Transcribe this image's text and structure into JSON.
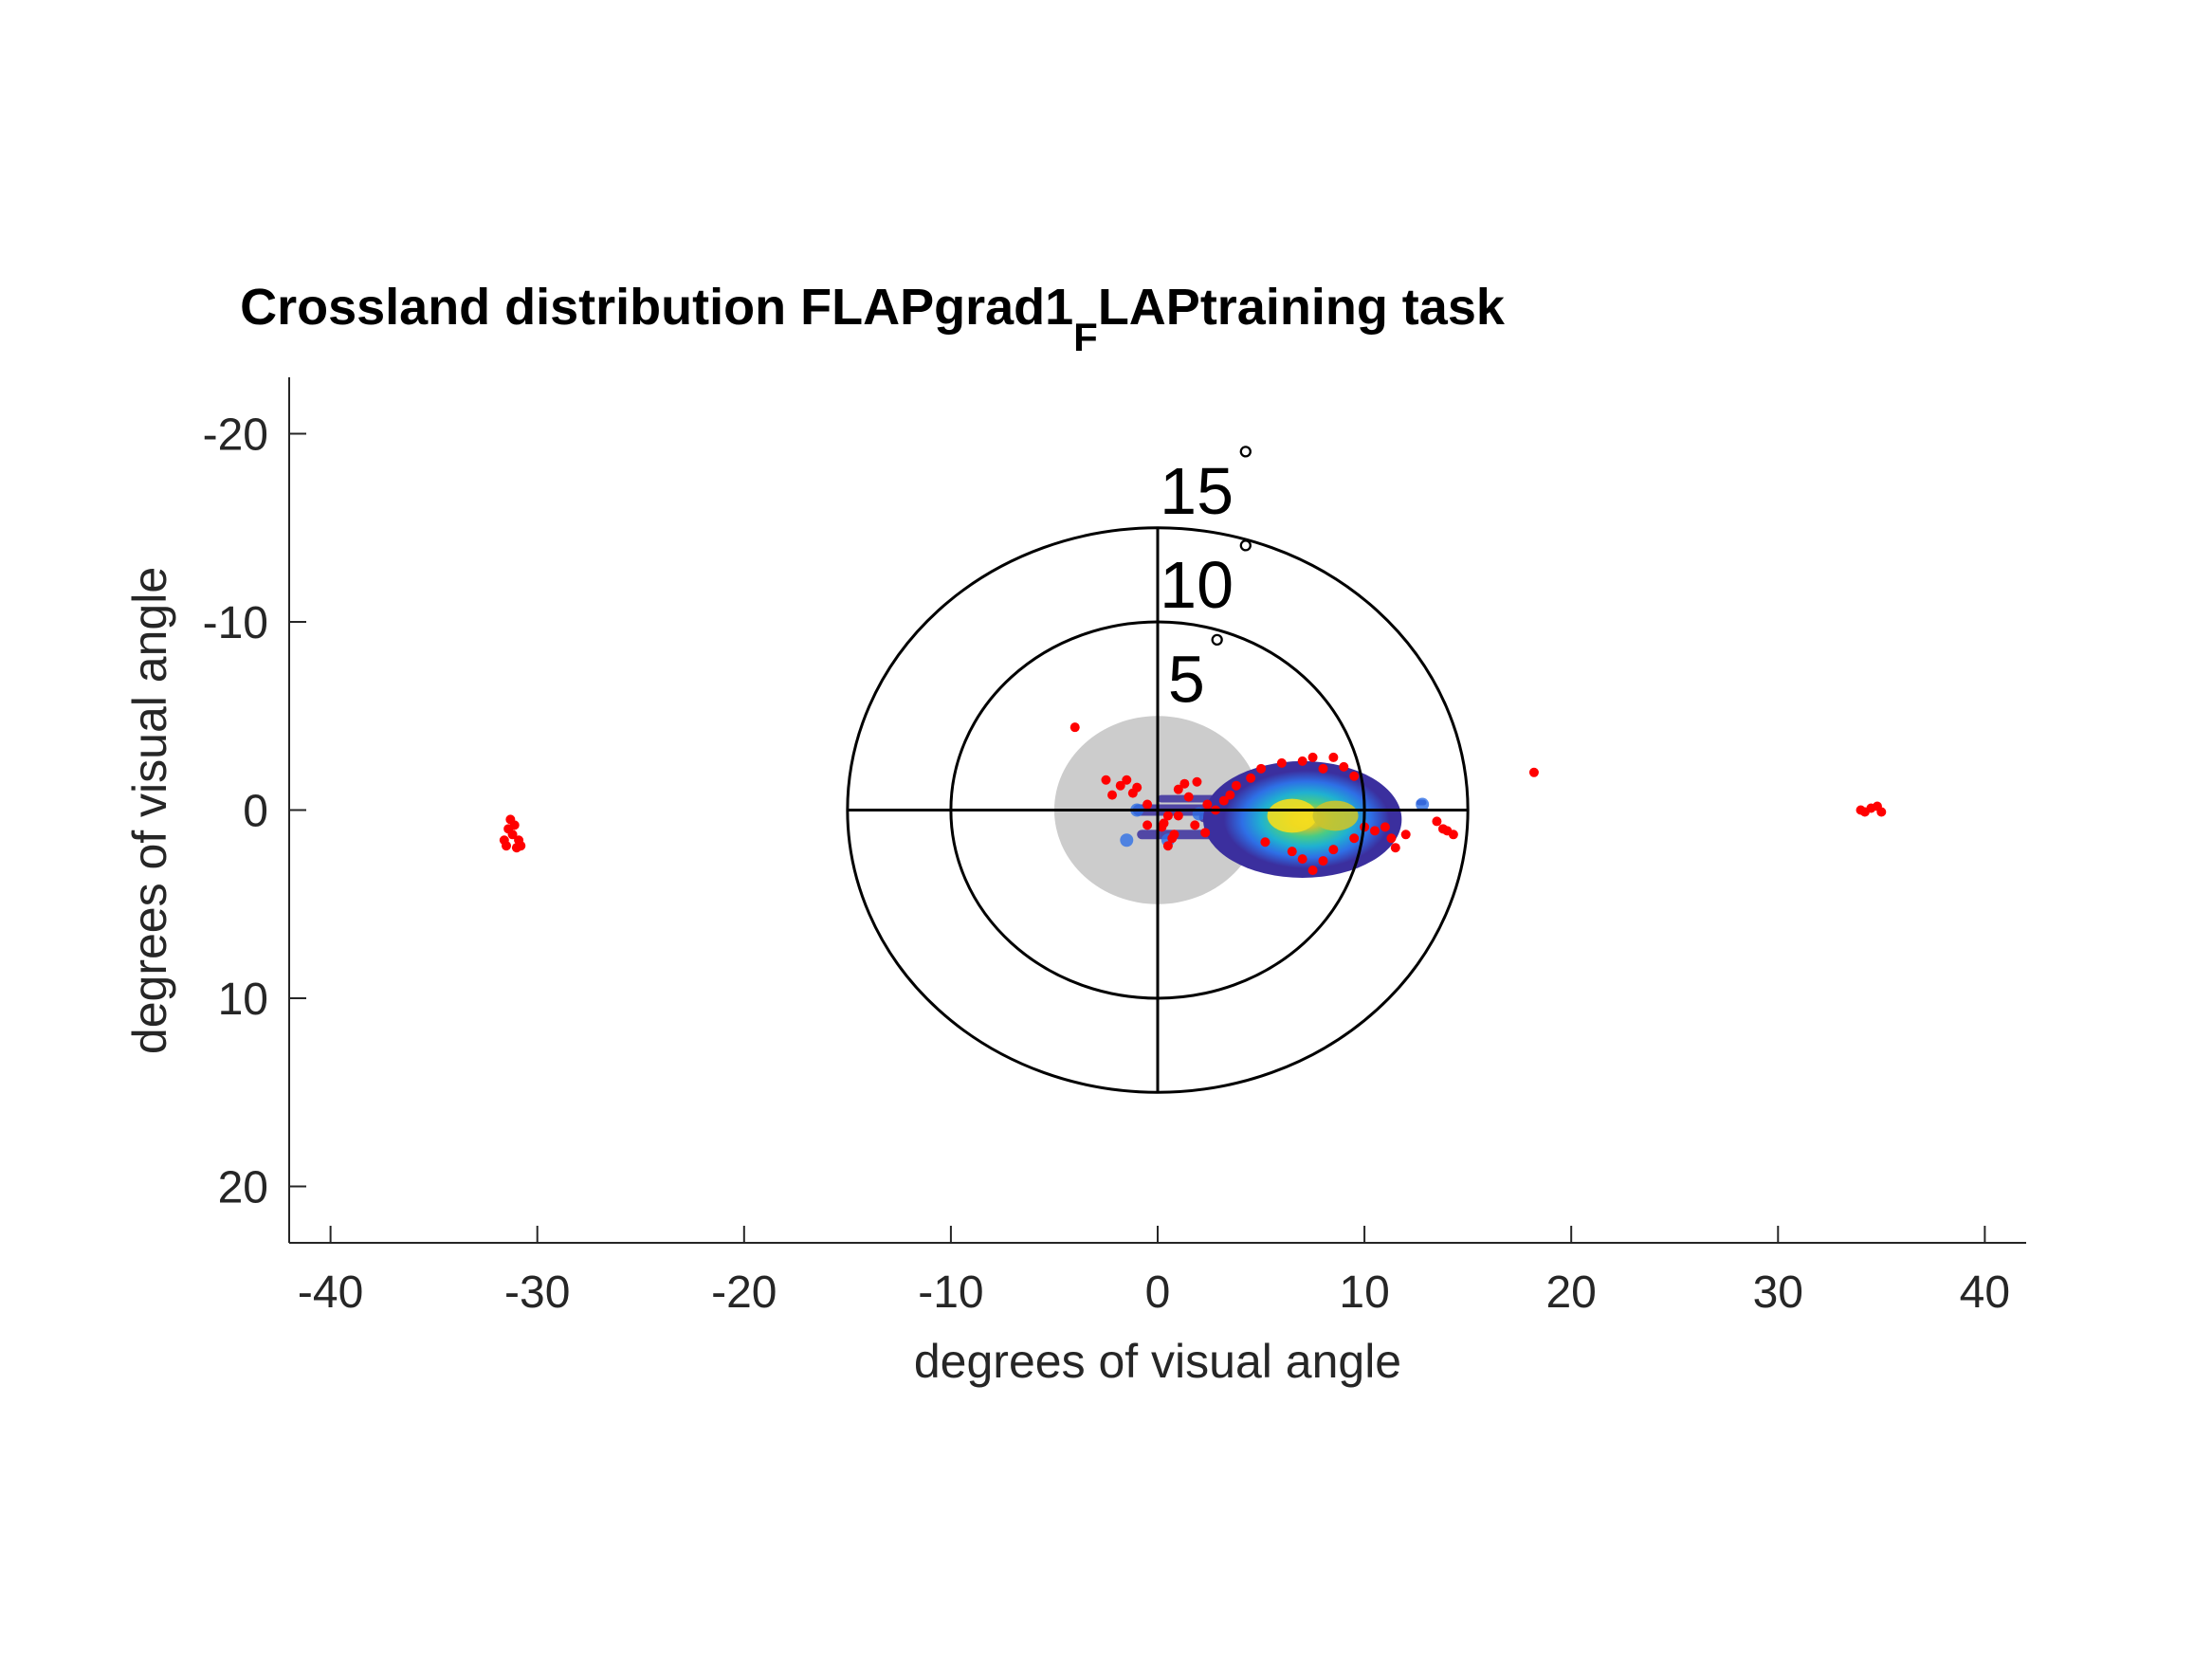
{
  "chart_data": {
    "type": "scatter",
    "title": {
      "main": "Crossland distribution FLAPgrad1",
      "subscript": "F",
      "suffix": "LAPtraining task"
    },
    "xlabel": "degrees of visual angle",
    "ylabel": "degrees of visual angle",
    "xlim": [
      -42,
      42
    ],
    "ylim": [
      -23,
      23
    ],
    "y_axis_reversed": true,
    "x_ticks": [
      -40,
      -30,
      -20,
      -10,
      0,
      10,
      20,
      30,
      40
    ],
    "y_ticks": [
      -20,
      -10,
      0,
      10,
      20
    ],
    "grid": false,
    "rings": [
      {
        "radius": 5,
        "label": "5",
        "filled": true,
        "fill_color": "#cccccc"
      },
      {
        "radius": 10,
        "label": "10",
        "filled": false
      },
      {
        "radius": 15,
        "label": "15",
        "filled": false
      }
    ],
    "ring_label_unit": "°",
    "crosshair_extent": 15,
    "density_blob": {
      "center": [
        7,
        0.5
      ],
      "colormap": [
        "#3b2f9e",
        "#2e6fe6",
        "#1fb1d1",
        "#48cb86",
        "#c9c32f",
        "#f4dd1f"
      ]
    },
    "point_color": "#ff0000",
    "points": [
      [
        -31.6,
        1.6
      ],
      [
        -31.4,
        1.0
      ],
      [
        -31.2,
        1.3
      ],
      [
        -31.0,
        2.0
      ],
      [
        -31.3,
        0.5
      ],
      [
        -30.9,
        1.6
      ],
      [
        -31.5,
        1.9
      ],
      [
        -31.1,
        0.8
      ],
      [
        -30.8,
        1.9
      ],
      [
        34.0,
        0.0
      ],
      [
        34.5,
        -0.1
      ],
      [
        35.0,
        0.1
      ],
      [
        34.2,
        0.1
      ],
      [
        34.8,
        -0.2
      ],
      [
        -4.0,
        -4.4
      ],
      [
        18.2,
        -2.0
      ],
      [
        -2.5,
        -1.6
      ],
      [
        -1.5,
        -1.6
      ],
      [
        -1.0,
        -1.2
      ],
      [
        -1.8,
        -1.3
      ],
      [
        -2.2,
        -0.8
      ],
      [
        -0.5,
        -0.3
      ],
      [
        1.0,
        -1.1
      ],
      [
        1.3,
        -1.4
      ],
      [
        1.5,
        -0.7
      ],
      [
        1.9,
        -1.5
      ],
      [
        2.4,
        -0.3
      ],
      [
        1.0,
        0.3
      ],
      [
        0.2,
        0.9
      ],
      [
        0.5,
        0.3
      ],
      [
        0.3,
        0.7
      ],
      [
        -0.5,
        0.8
      ],
      [
        1.8,
        0.8
      ],
      [
        2.3,
        1.2
      ],
      [
        3.2,
        -0.5
      ],
      [
        3.5,
        -0.8
      ],
      [
        3.8,
        -1.3
      ],
      [
        4.5,
        -1.7
      ],
      [
        5.0,
        -2.2
      ],
      [
        6.0,
        -2.5
      ],
      [
        7.0,
        -2.6
      ],
      [
        7.5,
        -2.8
      ],
      [
        8.0,
        -2.2
      ],
      [
        8.5,
        -2.8
      ],
      [
        9.0,
        -2.3
      ],
      [
        9.5,
        -1.8
      ],
      [
        5.2,
        1.7
      ],
      [
        6.5,
        2.2
      ],
      [
        7.0,
        2.6
      ],
      [
        7.5,
        3.2
      ],
      [
        8.0,
        2.7
      ],
      [
        8.5,
        2.1
      ],
      [
        9.5,
        1.5
      ],
      [
        10.0,
        0.9
      ],
      [
        10.5,
        1.1
      ],
      [
        11.0,
        0.9
      ],
      [
        11.3,
        1.5
      ],
      [
        11.5,
        2.0
      ],
      [
        12.0,
        1.3
      ],
      [
        13.5,
        0.6
      ],
      [
        14.0,
        1.1
      ],
      [
        14.3,
        1.3
      ],
      [
        13.8,
        1.0
      ],
      [
        0.8,
        1.3
      ],
      [
        0.5,
        1.9
      ],
      [
        0.7,
        1.5
      ],
      [
        -1.2,
        -0.9
      ],
      [
        2.8,
        0.0
      ]
    ],
    "low_density_traces": [
      [
        -1.5,
        1.6
      ],
      [
        0.5,
        1.6
      ],
      [
        -1.0,
        0.0
      ],
      [
        2.0,
        0.2
      ],
      [
        12.8,
        -0.3
      ]
    ]
  }
}
